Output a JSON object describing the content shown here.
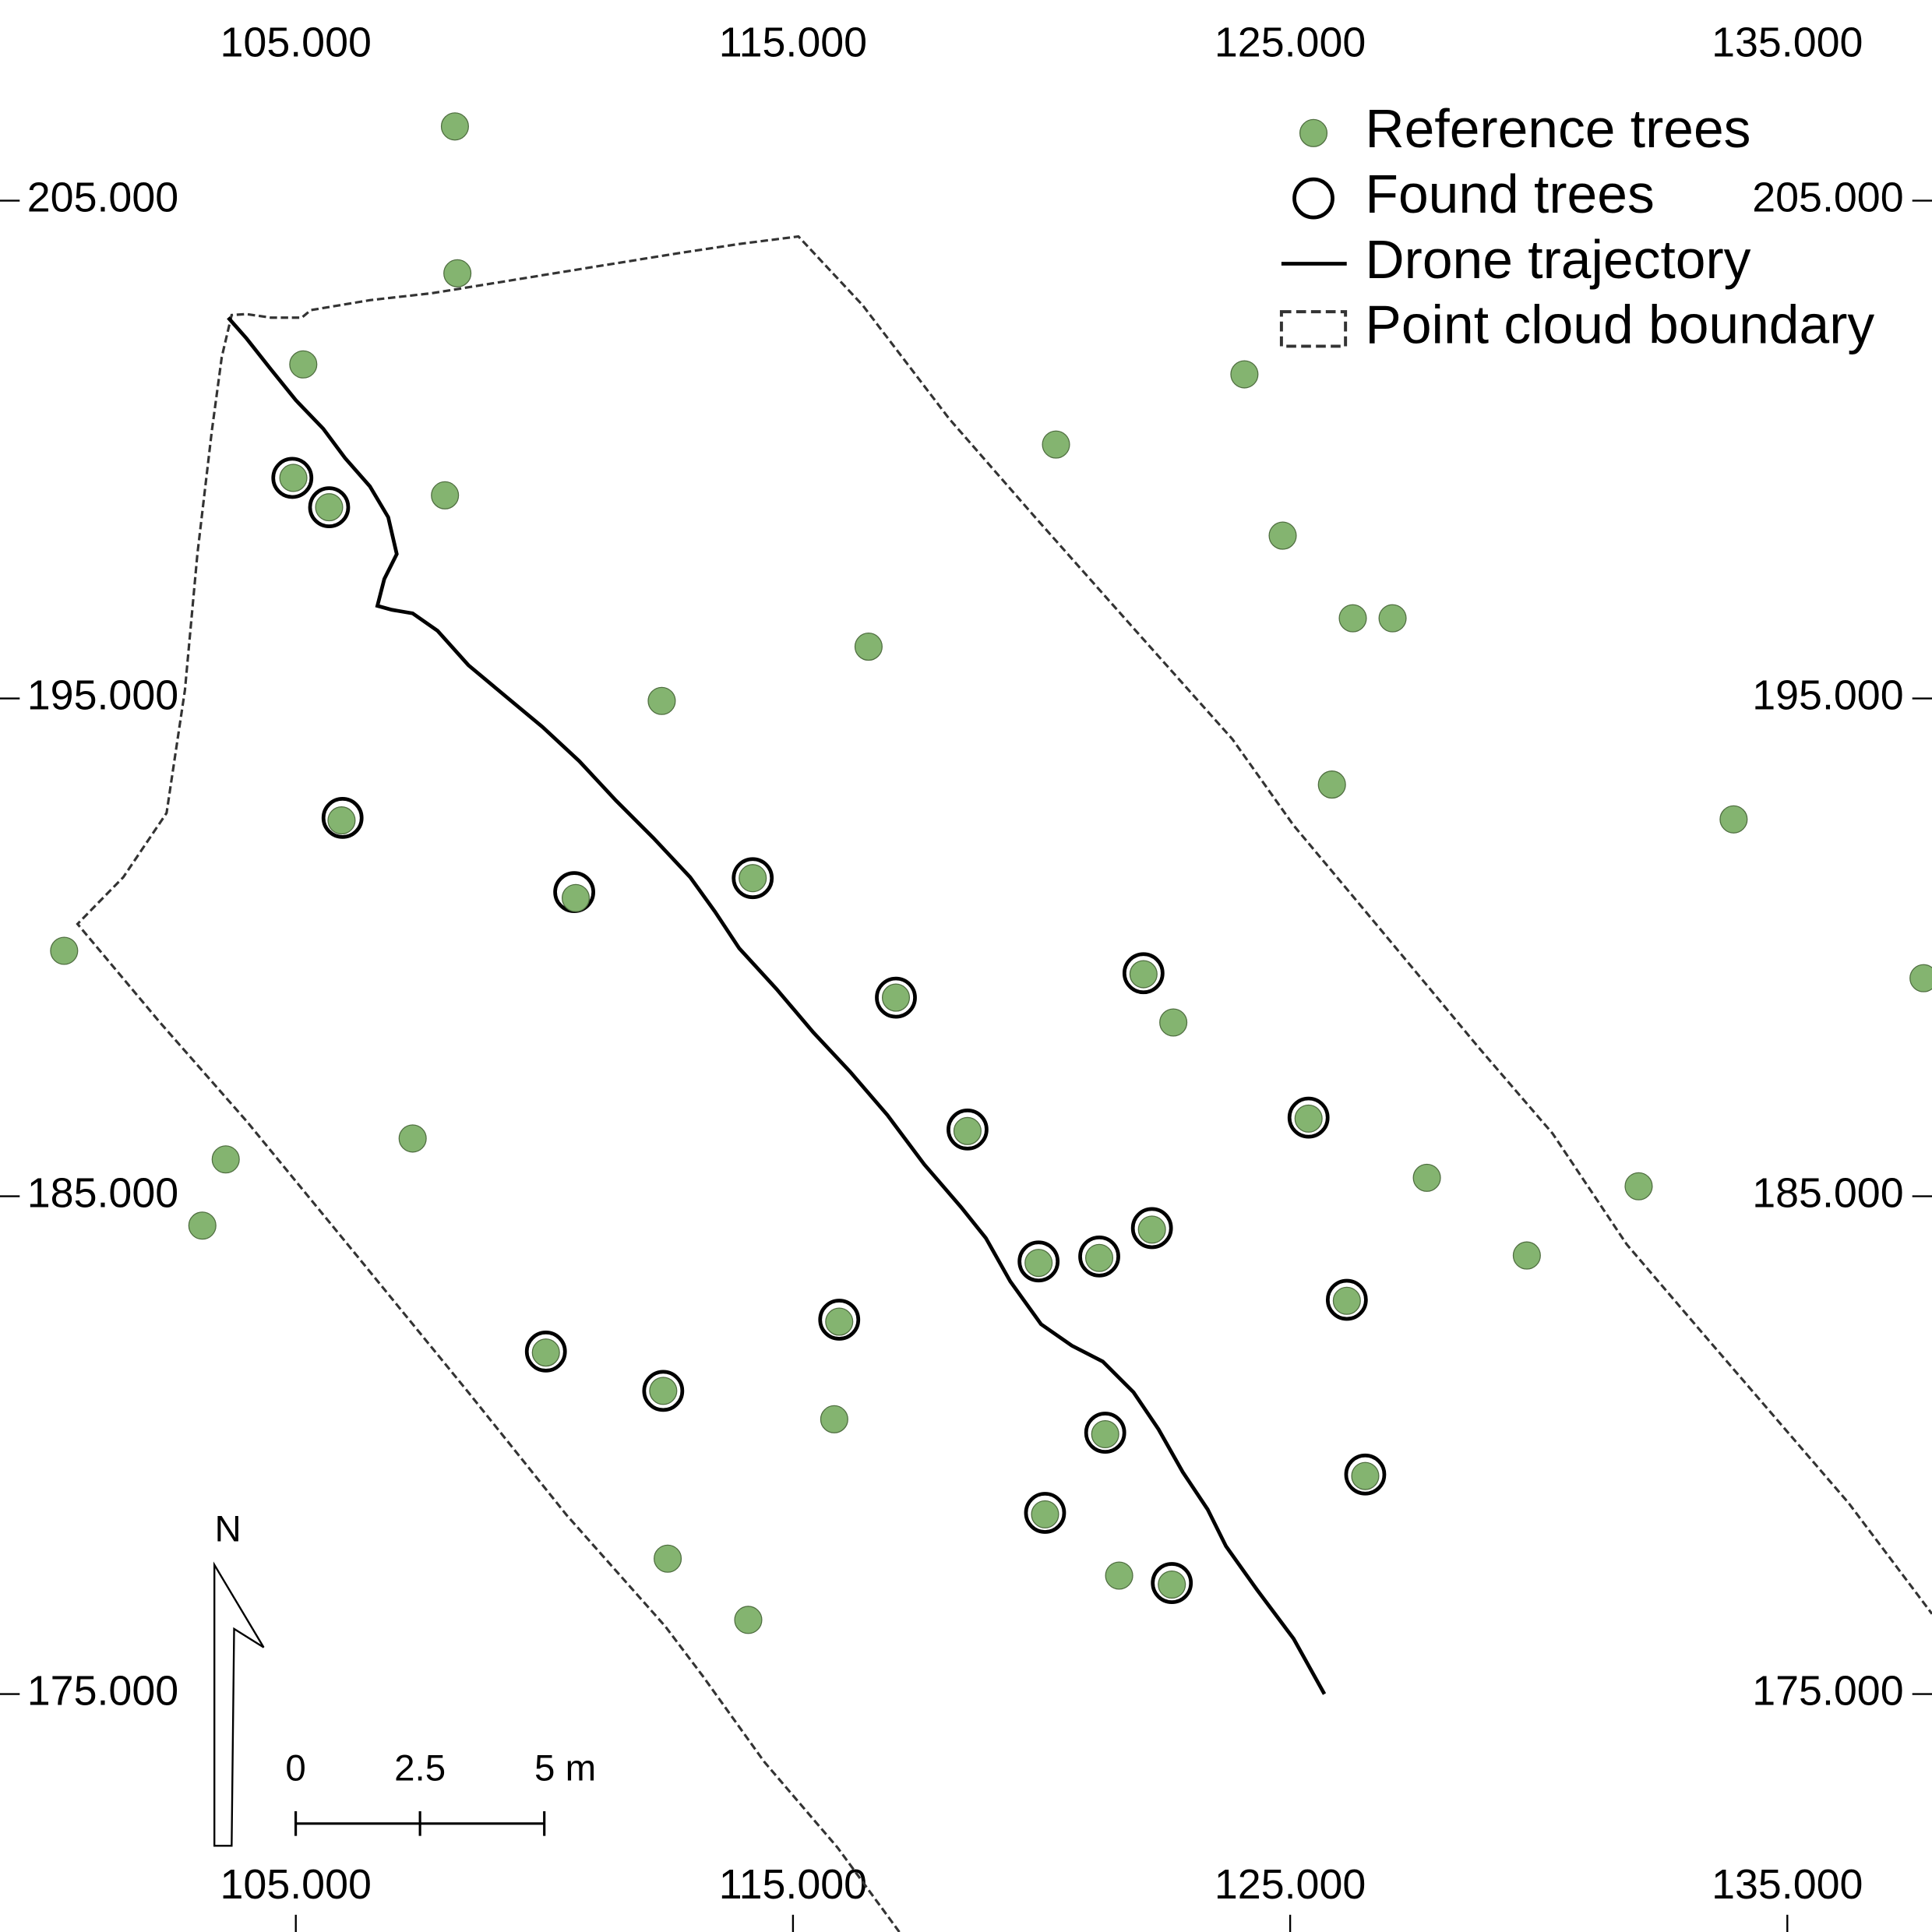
{
  "chart_data": {
    "type": "scatter",
    "xlim": [
      99.05,
      137.91
    ],
    "ylim": [
      170.22,
      209.03
    ],
    "xticks": [
      {
        "value": 105,
        "label": "105.000"
      },
      {
        "value": 115,
        "label": "115.000"
      },
      {
        "value": 125,
        "label": "125.000"
      },
      {
        "value": 135,
        "label": "135.000"
      }
    ],
    "yticks": [
      {
        "value": 175,
        "label": "175.000"
      },
      {
        "value": 185,
        "label": "185.000"
      },
      {
        "value": 195,
        "label": "195.000"
      },
      {
        "value": 205,
        "label": "205.000"
      }
    ],
    "legend": "upper right",
    "north_label": "N",
    "scale_bar": {
      "ticks": [
        0,
        2.5,
        {
          "value": 5,
          "label": "5 m"
        }
      ]
    },
    "series": [
      {
        "name": "Reference trees",
        "kind": "filled-points",
        "color": "#84b470",
        "x": [
          108.2,
          108.25,
          105.15,
          124.08,
          120.29,
          104.95,
          105.67,
          108.0,
          124.85,
          126.26,
          127.06,
          116.52,
          112.36,
          125.84,
          105.92,
          133.92,
          110.63,
          114.19,
          100.34,
          117.07,
          122.05,
          122.65,
          137.74,
          118.51,
          107.35,
          103.59,
          125.37,
          127.75,
          132.01,
          103.12,
          119.94,
          121.16,
          122.22,
          129.76,
          126.14,
          115.93,
          110.03,
          112.39,
          115.83,
          121.28,
          126.51,
          120.07,
          112.48,
          121.56,
          122.62,
          114.1
        ],
        "y": [
          206.49,
          203.54,
          201.71,
          201.51,
          200.1,
          199.43,
          198.84,
          199.08,
          198.27,
          196.61,
          196.61,
          196.04,
          194.95,
          193.27,
          192.55,
          192.57,
          190.99,
          191.39,
          189.93,
          188.99,
          189.46,
          188.49,
          189.38,
          186.31,
          186.16,
          185.74,
          186.56,
          185.37,
          185.2,
          184.41,
          183.66,
          183.76,
          184.33,
          183.81,
          182.9,
          182.48,
          181.86,
          181.09,
          180.52,
          180.22,
          179.38,
          178.61,
          177.72,
          177.38,
          177.2,
          176.49
        ]
      },
      {
        "name": "Found trees",
        "kind": "open-circles",
        "color": "#000000",
        "x": [
          104.93,
          105.67,
          105.94,
          110.6,
          114.19,
          117.07,
          122.05,
          118.51,
          125.37,
          119.94,
          121.16,
          122.22,
          126.14,
          115.93,
          110.03,
          112.39,
          121.28,
          126.51,
          120.07,
          122.62
        ],
        "y": [
          199.43,
          198.84,
          192.6,
          191.11,
          191.39,
          188.99,
          189.48,
          186.34,
          186.58,
          183.69,
          183.79,
          184.36,
          182.92,
          182.52,
          181.88,
          181.09,
          180.25,
          179.41,
          178.64,
          177.23
        ]
      },
      {
        "name": "Drone trajectory",
        "kind": "solid-line",
        "color": "#000000",
        "x": [
          103.64,
          104.01,
          104.5,
          105.0,
          105.55,
          105.99,
          106.49,
          106.86,
          107.03,
          106.78,
          106.64,
          106.93,
          107.35,
          107.85,
          108.47,
          109.21,
          109.96,
          110.7,
          111.44,
          112.19,
          112.93,
          113.43,
          113.92,
          114.67,
          115.41,
          116.15,
          116.9,
          117.64,
          118.38,
          118.88,
          119.37,
          119.99,
          120.61,
          121.23,
          121.85,
          122.35,
          122.84,
          123.34,
          123.71,
          124.33,
          125.07,
          125.69
        ],
        "y": [
          202.65,
          202.23,
          201.61,
          200.99,
          200.42,
          199.83,
          199.26,
          198.64,
          197.9,
          197.4,
          196.86,
          196.78,
          196.71,
          196.36,
          195.67,
          195.05,
          194.43,
          193.74,
          192.95,
          192.2,
          191.41,
          190.72,
          189.98,
          189.16,
          188.29,
          187.5,
          186.63,
          185.64,
          184.78,
          184.16,
          183.29,
          182.43,
          182.0,
          181.68,
          181.06,
          180.32,
          179.46,
          178.71,
          177.97,
          177.1,
          176.11,
          175.0
        ]
      },
      {
        "name": "Point cloud boundary",
        "kind": "dashed-line",
        "color": "#333333",
        "x": [
          117.14,
          115.9,
          114.42,
          113.18,
          112.43,
          110.45,
          108.47,
          106.24,
          104.01,
          102.27,
          100.61,
          101.53,
          102.4,
          102.77,
          103.02,
          103.31,
          103.51,
          103.71,
          104.01,
          104.5,
          105.12,
          105.3,
          106.49,
          107.73,
          108.97,
          110.2,
          111.44,
          112.68,
          113.92,
          115.11,
          116.4,
          118.14,
          119.87,
          121.85,
          123.84,
          125.07,
          126.31,
          127.55,
          128.79,
          130.28,
          131.77,
          133.25,
          134.74,
          136.23,
          137.91
        ],
        "y": [
          170.22,
          171.91,
          173.64,
          175.37,
          176.36,
          178.59,
          181.06,
          183.79,
          186.51,
          188.49,
          190.47,
          191.41,
          192.7,
          195.17,
          197.9,
          200.37,
          201.86,
          202.7,
          202.72,
          202.65,
          202.65,
          202.8,
          203.0,
          203.14,
          203.34,
          203.54,
          203.74,
          203.94,
          204.13,
          204.28,
          202.9,
          200.62,
          198.64,
          196.41,
          194.18,
          192.45,
          190.97,
          189.48,
          187.99,
          186.26,
          184.03,
          182.3,
          180.57,
          178.84,
          176.61
        ]
      }
    ]
  }
}
